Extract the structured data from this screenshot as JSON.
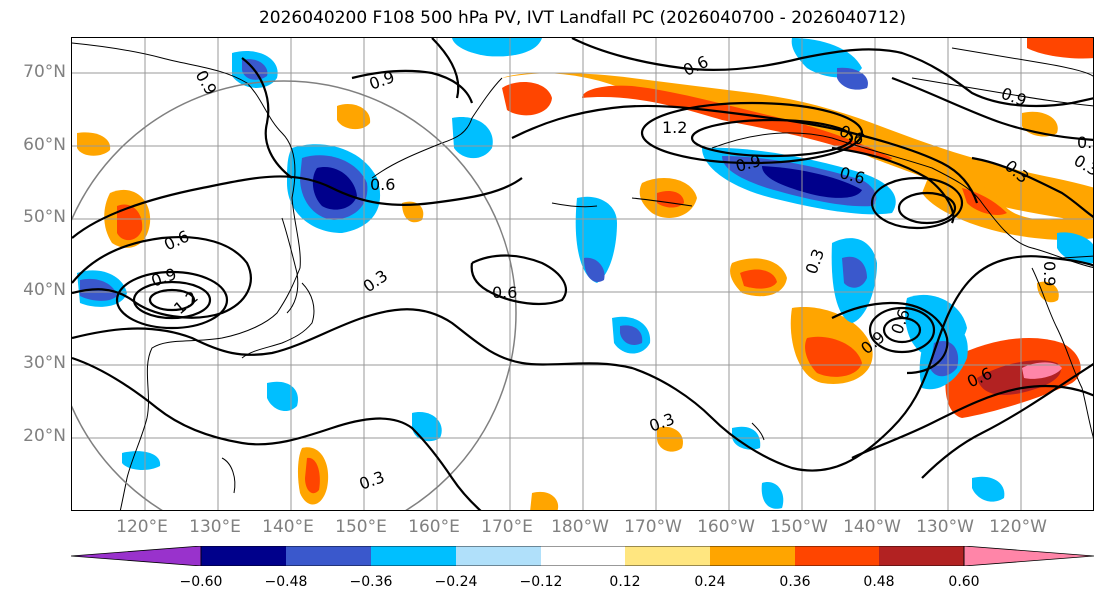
{
  "title": "2026040200 F108 500 hPa PV, IVT Landfall PC (2026040700 - 2026040712)",
  "lat_labels": [
    "70°N",
    "60°N",
    "50°N",
    "40°N",
    "30°N",
    "20°N"
  ],
  "lon_labels": [
    "120°E",
    "130°E",
    "140°E",
    "150°E",
    "160°E",
    "170°E",
    "180°W",
    "170°W",
    "160°W",
    "150°W",
    "140°W",
    "130°W",
    "120°W"
  ],
  "contour_labels": [
    "0.9",
    "0.9",
    "0.6",
    "1.2",
    "0.6",
    "0.9",
    "0.6",
    "0.3",
    "0.6",
    "0.9",
    "1.2",
    "0.6",
    "0.9",
    "0.3",
    "0.3",
    "0.6",
    "0.3",
    "0.9",
    "0.6",
    "0.6",
    "0.3",
    "0.3",
    "0.9",
    "0.9"
  ],
  "colorbar": {
    "ticks": [
      "−0.60",
      "−0.48",
      "−0.36",
      "−0.24",
      "−0.12",
      "0.12",
      "0.24",
      "0.36",
      "0.48",
      "0.60"
    ],
    "colors": [
      "#9932cc",
      "#00008b",
      "#3a58cc",
      "#00bfff",
      "#b0e0fa",
      "#ffffff",
      "#ffe680",
      "#ffa500",
      "#ff4500",
      "#b22222",
      "#ff85a8",
      "#ff85a8"
    ]
  }
}
